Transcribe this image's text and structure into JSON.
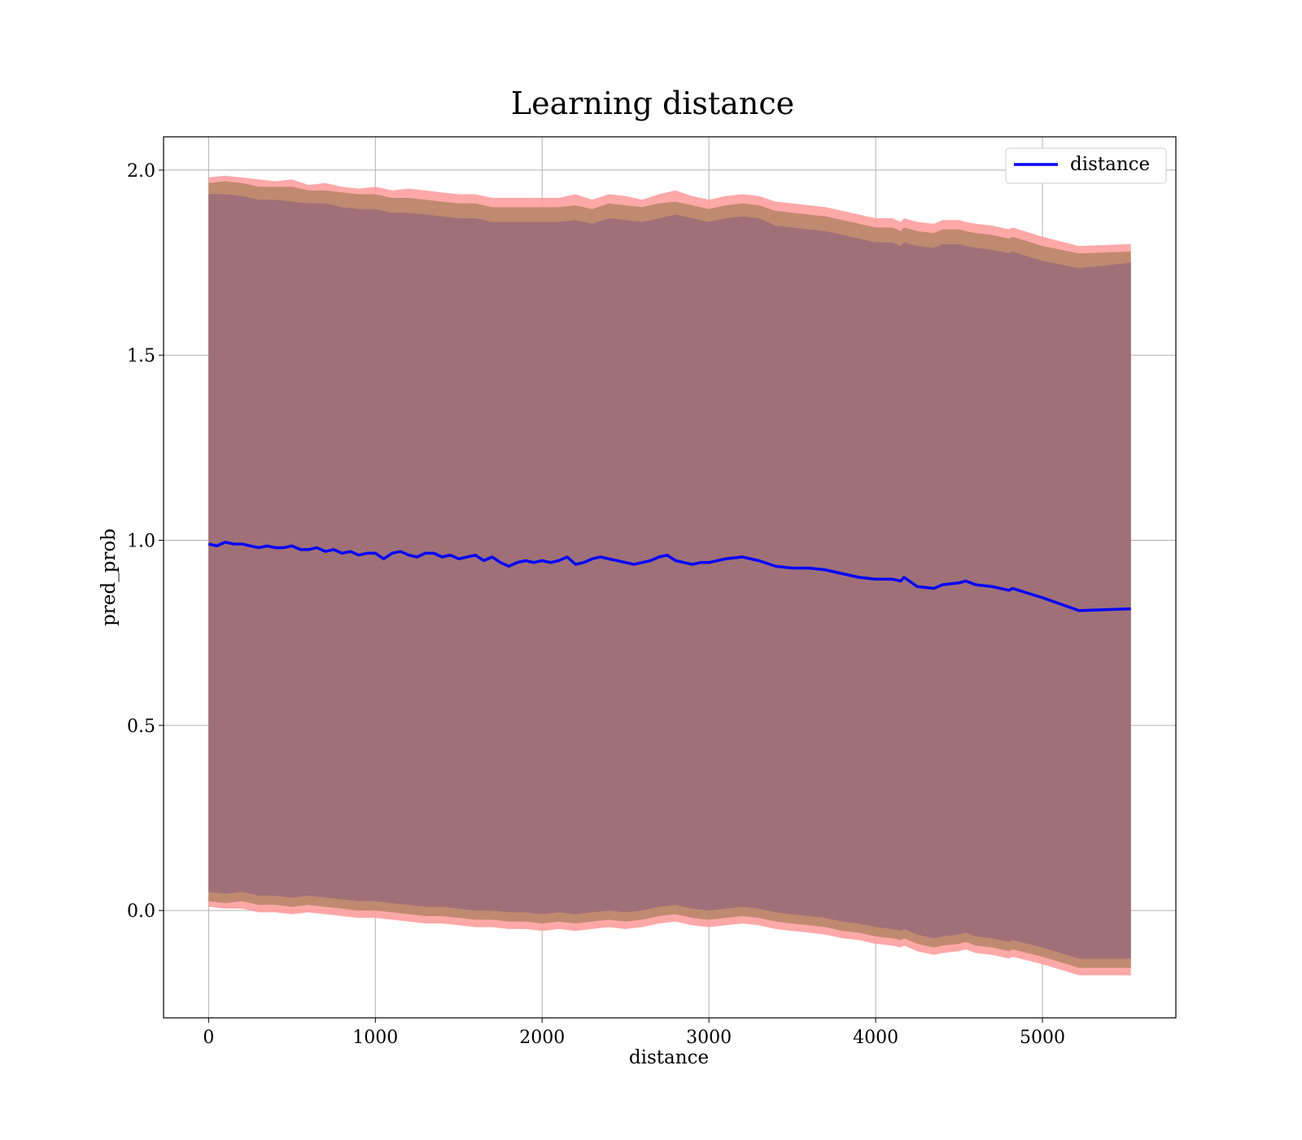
{
  "chart_data": {
    "type": "line",
    "title": "Learning distance",
    "xlabel": "distance",
    "ylabel": "pred_prob",
    "xlim": [
      -270,
      5800
    ],
    "ylim": [
      -0.29,
      2.09
    ],
    "grid": true,
    "legend_position": "top-right",
    "x_ticks": [
      0,
      1000,
      2000,
      3000,
      4000,
      5000
    ],
    "x_tick_labels": [
      "0",
      "1000",
      "2000",
      "3000",
      "4000",
      "5000"
    ],
    "y_ticks": [
      0.0,
      0.5,
      1.0,
      1.5,
      2.0
    ],
    "y_tick_labels": [
      "0.0",
      "0.5",
      "1.0",
      "1.5",
      "2.0"
    ],
    "colors": {
      "line": "#0000ff",
      "outer_band": "#ff9999",
      "middle_band": "#c08a70",
      "inner_band": "#a07078"
    },
    "series": [
      {
        "name": "distance",
        "x": [
          0,
          50,
          100,
          150,
          200,
          250,
          300,
          350,
          400,
          450,
          500,
          550,
          600,
          650,
          700,
          750,
          800,
          850,
          900,
          950,
          1000,
          1050,
          1100,
          1150,
          1200,
          1250,
          1300,
          1350,
          1400,
          1450,
          1500,
          1550,
          1600,
          1650,
          1700,
          1750,
          1800,
          1850,
          1900,
          1950,
          2000,
          2050,
          2100,
          2150,
          2200,
          2250,
          2300,
          2350,
          2400,
          2450,
          2500,
          2550,
          2600,
          2650,
          2700,
          2750,
          2800,
          2850,
          2900,
          2950,
          3000,
          3100,
          3200,
          3300,
          3400,
          3500,
          3600,
          3700,
          3800,
          3900,
          4000,
          4100,
          4150,
          4170,
          4250,
          4350,
          4400,
          4500,
          4540,
          4600,
          4700,
          4800,
          4820,
          5000,
          5220,
          5530
        ],
        "y": [
          0.99,
          0.985,
          0.995,
          0.99,
          0.99,
          0.985,
          0.98,
          0.985,
          0.98,
          0.98,
          0.985,
          0.975,
          0.975,
          0.98,
          0.97,
          0.975,
          0.965,
          0.97,
          0.96,
          0.965,
          0.965,
          0.95,
          0.965,
          0.97,
          0.96,
          0.955,
          0.965,
          0.965,
          0.955,
          0.96,
          0.95,
          0.955,
          0.96,
          0.945,
          0.955,
          0.94,
          0.93,
          0.94,
          0.945,
          0.94,
          0.945,
          0.94,
          0.945,
          0.955,
          0.935,
          0.94,
          0.95,
          0.955,
          0.95,
          0.945,
          0.94,
          0.935,
          0.94,
          0.945,
          0.955,
          0.96,
          0.945,
          0.94,
          0.935,
          0.94,
          0.94,
          0.95,
          0.955,
          0.945,
          0.93,
          0.925,
          0.925,
          0.92,
          0.91,
          0.9,
          0.895,
          0.895,
          0.89,
          0.9,
          0.875,
          0.87,
          0.88,
          0.885,
          0.89,
          0.88,
          0.875,
          0.865,
          0.87,
          0.845,
          0.81,
          0.815
        ]
      }
    ],
    "bands": {
      "x": [
        0,
        100,
        200,
        300,
        400,
        500,
        600,
        700,
        800,
        900,
        1000,
        1100,
        1200,
        1300,
        1400,
        1500,
        1600,
        1700,
        1800,
        1900,
        2000,
        2100,
        2200,
        2300,
        2400,
        2500,
        2600,
        2700,
        2800,
        2900,
        3000,
        3100,
        3200,
        3300,
        3400,
        3500,
        3600,
        3700,
        3800,
        3900,
        4000,
        4100,
        4150,
        4170,
        4250,
        4350,
        4400,
        4500,
        4540,
        4600,
        4700,
        4800,
        4820,
        5000,
        5220,
        5530
      ],
      "outer_upper": [
        1.98,
        1.985,
        1.98,
        1.975,
        1.97,
        1.975,
        1.96,
        1.965,
        1.955,
        1.95,
        1.955,
        1.945,
        1.95,
        1.945,
        1.94,
        1.935,
        1.935,
        1.925,
        1.925,
        1.925,
        1.925,
        1.925,
        1.935,
        1.92,
        1.935,
        1.93,
        1.92,
        1.935,
        1.945,
        1.93,
        1.92,
        1.93,
        1.935,
        1.93,
        1.915,
        1.91,
        1.905,
        1.9,
        1.89,
        1.88,
        1.87,
        1.87,
        1.86,
        1.87,
        1.86,
        1.855,
        1.865,
        1.865,
        1.86,
        1.855,
        1.85,
        1.84,
        1.845,
        1.82,
        1.795,
        1.8
      ],
      "inner_upper": [
        1.965,
        1.97,
        1.965,
        1.955,
        1.955,
        1.955,
        1.945,
        1.945,
        1.94,
        1.935,
        1.935,
        1.925,
        1.925,
        1.92,
        1.915,
        1.91,
        1.91,
        1.9,
        1.9,
        1.9,
        1.9,
        1.9,
        1.905,
        1.895,
        1.91,
        1.905,
        1.9,
        1.91,
        1.915,
        1.905,
        1.895,
        1.905,
        1.91,
        1.905,
        1.89,
        1.885,
        1.88,
        1.875,
        1.865,
        1.855,
        1.845,
        1.845,
        1.835,
        1.845,
        1.835,
        1.83,
        1.84,
        1.84,
        1.835,
        1.83,
        1.825,
        1.815,
        1.82,
        1.795,
        1.775,
        1.78
      ],
      "lower_top": [
        1.935,
        1.935,
        1.93,
        1.92,
        1.92,
        1.915,
        1.91,
        1.91,
        1.9,
        1.895,
        1.895,
        1.885,
        1.885,
        1.88,
        1.875,
        1.87,
        1.87,
        1.86,
        1.86,
        1.86,
        1.86,
        1.86,
        1.865,
        1.855,
        1.87,
        1.865,
        1.86,
        1.87,
        1.88,
        1.87,
        1.86,
        1.87,
        1.875,
        1.87,
        1.85,
        1.845,
        1.84,
        1.835,
        1.825,
        1.815,
        1.805,
        1.805,
        1.795,
        1.805,
        1.795,
        1.79,
        1.8,
        1.8,
        1.795,
        1.79,
        1.785,
        1.775,
        1.78,
        1.755,
        1.735,
        1.75
      ],
      "lower_inner": [
        0.05,
        0.045,
        0.05,
        0.04,
        0.04,
        0.035,
        0.04,
        0.035,
        0.03,
        0.025,
        0.025,
        0.02,
        0.015,
        0.01,
        0.01,
        0.005,
        0.0,
        0.0,
        -0.005,
        -0.005,
        -0.01,
        -0.005,
        -0.01,
        -0.005,
        0.0,
        -0.005,
        0.0,
        0.01,
        0.015,
        0.005,
        0.0,
        0.005,
        0.01,
        0.005,
        -0.005,
        -0.01,
        -0.015,
        -0.02,
        -0.03,
        -0.035,
        -0.045,
        -0.05,
        -0.055,
        -0.05,
        -0.065,
        -0.075,
        -0.07,
        -0.065,
        -0.06,
        -0.07,
        -0.075,
        -0.085,
        -0.08,
        -0.1,
        -0.13,
        -0.13
      ],
      "middle_lower": [
        0.025,
        0.02,
        0.025,
        0.015,
        0.015,
        0.01,
        0.015,
        0.01,
        0.005,
        0.0,
        0.0,
        -0.005,
        -0.01,
        -0.015,
        -0.015,
        -0.02,
        -0.025,
        -0.025,
        -0.03,
        -0.03,
        -0.035,
        -0.03,
        -0.035,
        -0.03,
        -0.025,
        -0.03,
        -0.025,
        -0.015,
        -0.01,
        -0.02,
        -0.025,
        -0.02,
        -0.015,
        -0.02,
        -0.03,
        -0.035,
        -0.04,
        -0.045,
        -0.055,
        -0.06,
        -0.07,
        -0.075,
        -0.08,
        -0.075,
        -0.09,
        -0.1,
        -0.095,
        -0.09,
        -0.085,
        -0.095,
        -0.1,
        -0.11,
        -0.105,
        -0.125,
        -0.155,
        -0.155
      ],
      "outer_lower": [
        0.01,
        0.005,
        0.005,
        -0.005,
        -0.005,
        -0.01,
        -0.005,
        -0.01,
        -0.015,
        -0.02,
        -0.02,
        -0.025,
        -0.03,
        -0.035,
        -0.035,
        -0.04,
        -0.045,
        -0.045,
        -0.05,
        -0.05,
        -0.055,
        -0.05,
        -0.055,
        -0.05,
        -0.045,
        -0.05,
        -0.045,
        -0.035,
        -0.03,
        -0.04,
        -0.045,
        -0.04,
        -0.035,
        -0.04,
        -0.05,
        -0.055,
        -0.06,
        -0.065,
        -0.075,
        -0.08,
        -0.09,
        -0.095,
        -0.1,
        -0.095,
        -0.11,
        -0.12,
        -0.115,
        -0.11,
        -0.105,
        -0.115,
        -0.12,
        -0.13,
        -0.125,
        -0.145,
        -0.175,
        -0.175
      ]
    }
  }
}
